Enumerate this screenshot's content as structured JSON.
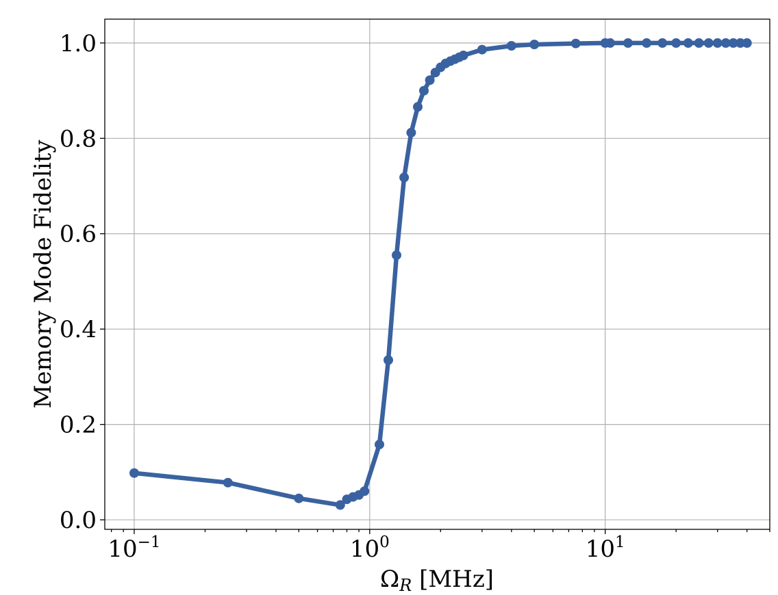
{
  "chart_data": {
    "type": "line",
    "xlabel": "Ω_R [MHz]",
    "ylabel": "Memory Mode Fidelity",
    "x_scale": "log",
    "xlim": [
      0.075,
      50
    ],
    "ylim": [
      -0.02,
      1.05
    ],
    "grid": true,
    "legend": "none",
    "x_ticks": [
      {
        "value": 0.1,
        "base": "10",
        "exp": "−1"
      },
      {
        "value": 1,
        "base": "10",
        "exp": "0"
      },
      {
        "value": 10,
        "base": "10",
        "exp": "1"
      }
    ],
    "y_ticks": [
      {
        "value": 0.0,
        "label": "0.0"
      },
      {
        "value": 0.2,
        "label": "0.2"
      },
      {
        "value": 0.4,
        "label": "0.4"
      },
      {
        "value": 0.6,
        "label": "0.6"
      },
      {
        "value": 0.8,
        "label": "0.8"
      },
      {
        "value": 1.0,
        "label": "1.0"
      }
    ],
    "series": [
      {
        "color": "#3a62a0",
        "x": [
          0.1,
          0.25,
          0.5,
          0.75,
          0.8,
          0.85,
          0.9,
          0.95,
          1.1,
          1.2,
          1.3,
          1.4,
          1.5,
          1.6,
          1.7,
          1.8,
          1.9,
          2.0,
          2.1,
          2.2,
          2.3,
          2.4,
          2.5,
          3.0,
          4.0,
          5.0,
          7.5,
          10,
          10.5,
          12.5,
          15,
          17.5,
          20,
          22.5,
          25,
          27.5,
          30,
          32.5,
          35,
          37.5,
          40
        ],
        "y": [
          0.098,
          0.078,
          0.045,
          0.031,
          0.043,
          0.048,
          0.052,
          0.06,
          0.158,
          0.335,
          0.555,
          0.718,
          0.812,
          0.866,
          0.9,
          0.922,
          0.938,
          0.949,
          0.957,
          0.962,
          0.966,
          0.97,
          0.974,
          0.986,
          0.994,
          0.997,
          0.999,
          1.0,
          1.0,
          1.0,
          1.0,
          1.0,
          1.0,
          1.0,
          1.0,
          1.0,
          1.0,
          1.0,
          1.0,
          1.0,
          1.0
        ]
      }
    ]
  }
}
